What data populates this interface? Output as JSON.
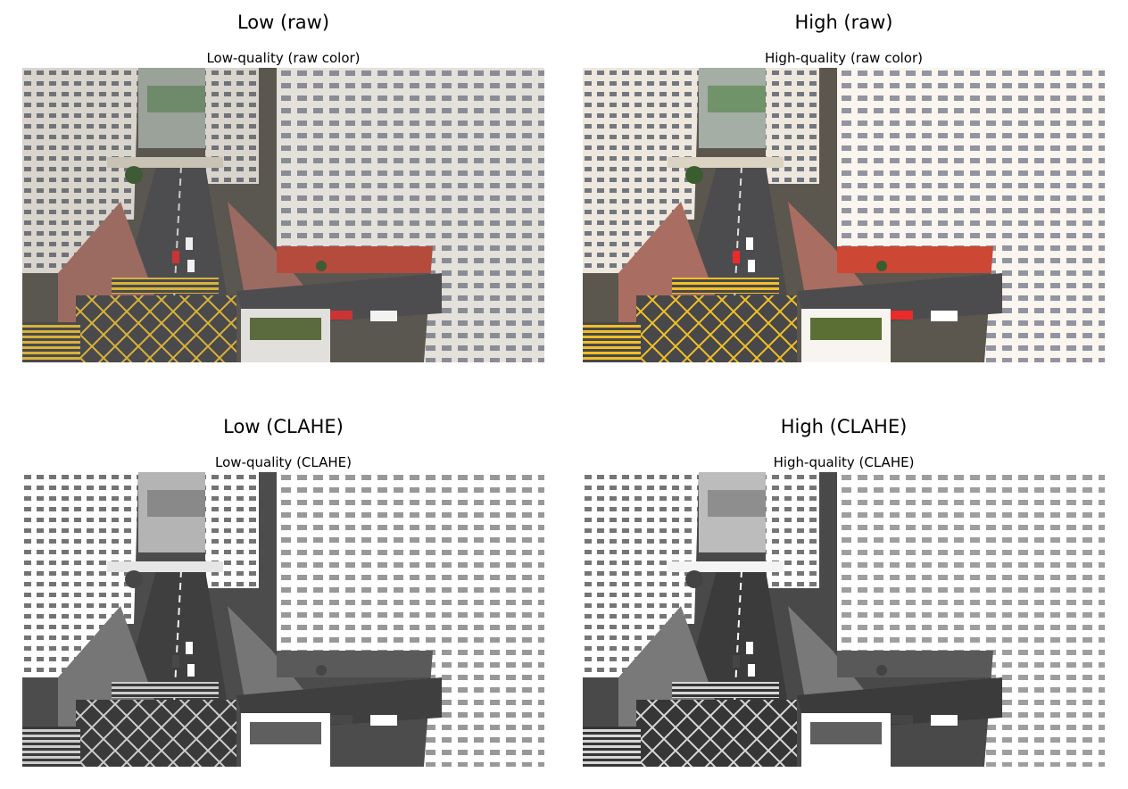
{
  "panels": [
    {
      "title": "Low (raw)",
      "subtitle": "Low-quality (raw color)",
      "image": "aerial-city-street-photo",
      "variant": "color"
    },
    {
      "title": "High (raw)",
      "subtitle": "High-quality (raw color)",
      "image": "aerial-city-street-photo",
      "variant": "color"
    },
    {
      "title": "Low (CLAHE)",
      "subtitle": "Low-quality (CLAHE)",
      "image": "aerial-city-street-photo",
      "variant": "grayscale"
    },
    {
      "title": "High (CLAHE)",
      "subtitle": "High-quality (CLAHE)",
      "image": "aerial-city-street-photo",
      "variant": "grayscale"
    }
  ]
}
